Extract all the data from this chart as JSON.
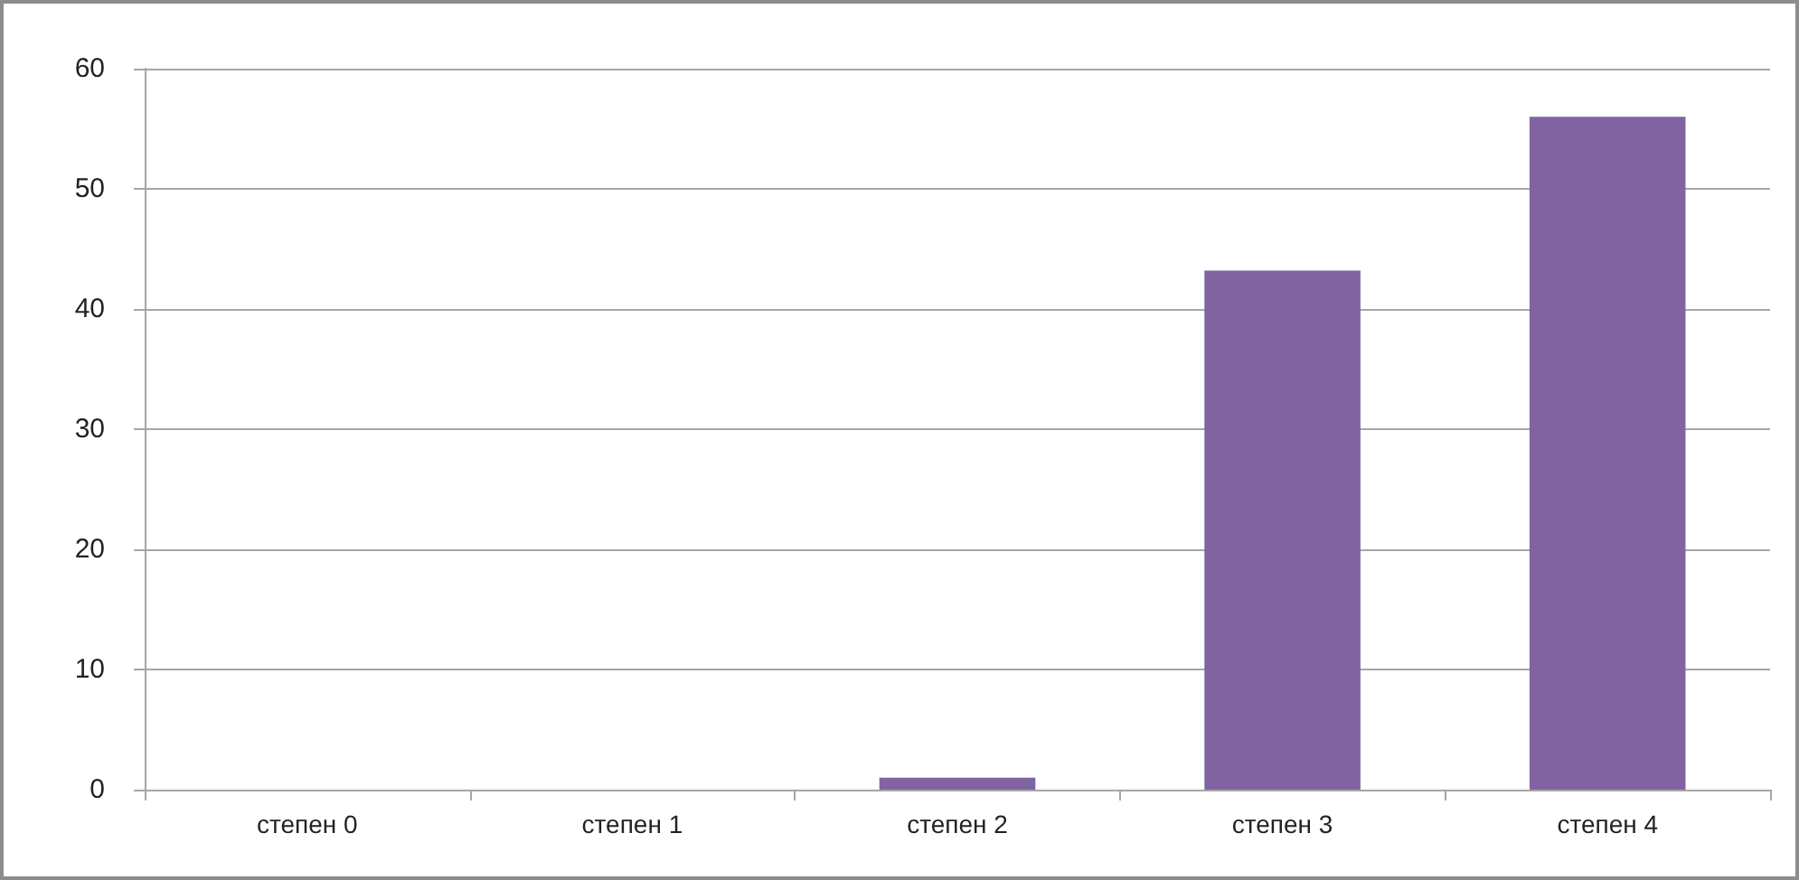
{
  "chart_data": {
    "type": "bar",
    "categories": [
      "степен 0",
      "степен 1",
      "степен 2",
      "степен 3",
      "степен 4"
    ],
    "values": [
      0,
      0,
      1,
      43.2,
      56
    ],
    "color": "#8064a2",
    "ylim": [
      0,
      60
    ],
    "yticks": [
      0,
      10,
      20,
      30,
      40,
      50,
      60
    ],
    "grid": "y"
  }
}
